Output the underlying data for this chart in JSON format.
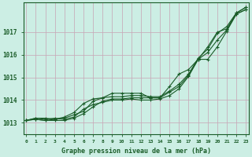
{
  "title": "Graphe pression niveau de la mer (hPa)",
  "bg_color": "#cceee4",
  "grid_color": "#c8a8b8",
  "line_color": "#1a5c28",
  "xlim": [
    -0.3,
    23.3
  ],
  "ylim": [
    1012.5,
    1018.3
  ],
  "yticks": [
    1013,
    1014,
    1015,
    1016,
    1017
  ],
  "xticks": [
    0,
    1,
    2,
    3,
    4,
    5,
    6,
    7,
    8,
    9,
    10,
    11,
    12,
    13,
    14,
    15,
    16,
    17,
    18,
    19,
    20,
    21,
    22,
    23
  ],
  "series": [
    [
      1013.1,
      1013.2,
      1013.15,
      1013.2,
      1013.15,
      1013.25,
      1013.6,
      1013.8,
      1013.9,
      1014.0,
      1014.0,
      1014.05,
      1014.0,
      1014.0,
      1014.05,
      1014.2,
      1014.5,
      1015.05,
      1015.8,
      1016.35,
      1017.0,
      1017.15,
      1017.85,
      1018.1
    ],
    [
      1013.1,
      1013.15,
      1013.1,
      1013.1,
      1013.1,
      1013.2,
      1013.4,
      1013.7,
      1013.95,
      1014.05,
      1014.05,
      1014.1,
      1014.1,
      1014.1,
      1014.1,
      1014.35,
      1014.6,
      1015.1,
      1015.8,
      1016.1,
      1016.65,
      1017.1,
      1017.8,
      1018.0
    ],
    [
      1013.1,
      1013.15,
      1013.1,
      1013.15,
      1013.2,
      1013.35,
      1013.5,
      1013.95,
      1014.1,
      1014.15,
      1014.15,
      1014.2,
      1014.2,
      1014.15,
      1014.15,
      1014.4,
      1014.7,
      1015.15,
      1015.85,
      1016.25,
      1016.95,
      1017.25,
      1017.85,
      1018.1
    ],
    [
      1013.1,
      1013.2,
      1013.2,
      1013.15,
      1013.25,
      1013.45,
      1013.85,
      1014.05,
      1014.1,
      1014.3,
      1014.3,
      1014.3,
      1014.3,
      1014.1,
      1014.1,
      1014.6,
      1015.15,
      1015.35,
      1015.8,
      1015.8,
      1016.35,
      1017.05,
      1017.8,
      1018.0
    ]
  ]
}
